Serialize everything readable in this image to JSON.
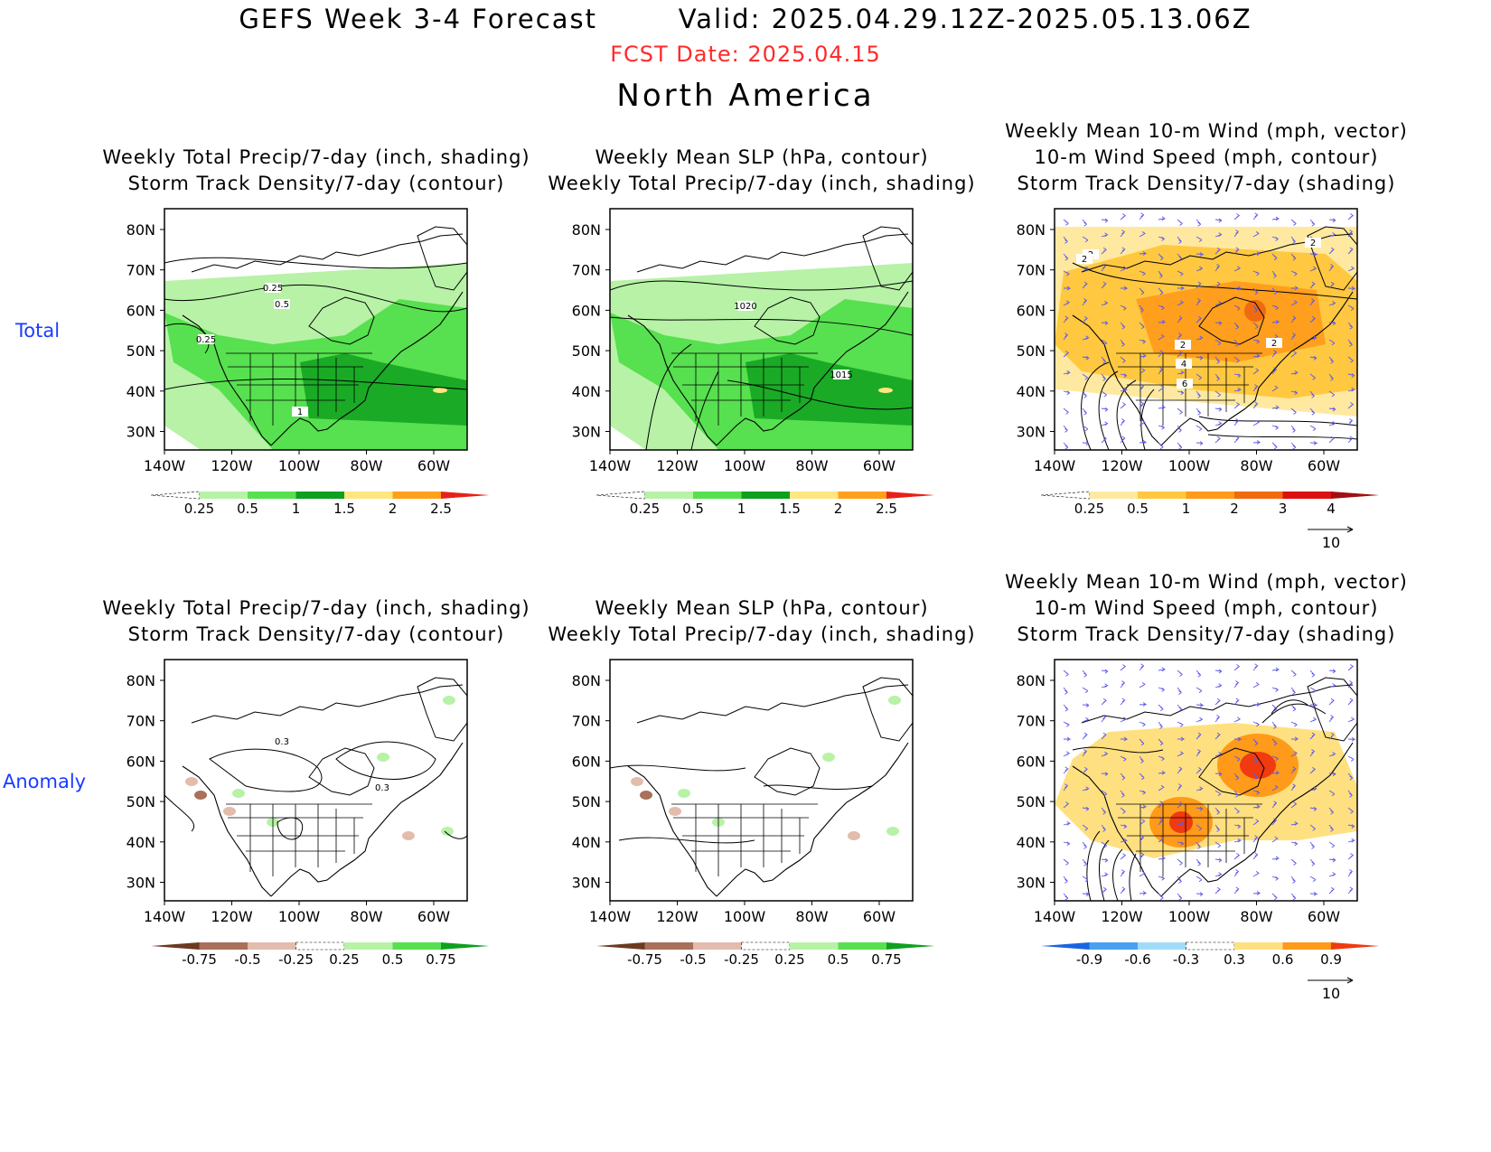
{
  "header": {
    "title": "GEFS Week 3-4 Forecast        Valid: 2025.04.29.12Z-2025.05.13.06Z",
    "fcst_date": "FCST Date: 2025.04.15",
    "region": "North America"
  },
  "rows": [
    "Total",
    "Anomaly"
  ],
  "axes": {
    "lat_ticks": [
      "80N",
      "70N",
      "60N",
      "50N",
      "40N",
      "30N"
    ],
    "lon_ticks": [
      "140W",
      "120W",
      "100W",
      "80W",
      "60W"
    ]
  },
  "panels": [
    {
      "id": "total-precip-storm",
      "title": [
        "Weekly Total Precip/7-day (inch, shading)",
        "Storm Track Density/7-day (contour)"
      ],
      "colorbar": [
        "0.25",
        "0.5",
        "1",
        "1.5",
        "2",
        "2.5"
      ],
      "contour_labels": [
        "0.25",
        "0.5",
        "0.25",
        "1"
      ]
    },
    {
      "id": "total-slp-precip",
      "title": [
        "Weekly Mean SLP (hPa, contour)",
        "Weekly Total Precip/7-day (inch, shading)"
      ],
      "colorbar": [
        "0.25",
        "0.5",
        "1",
        "1.5",
        "2",
        "2.5"
      ],
      "contour_labels": [
        "1020",
        "1015"
      ]
    },
    {
      "id": "total-wind-storm",
      "title": [
        "Weekly Mean 10-m Wind (mph, vector)",
        "10-m Wind Speed (mph, contour)",
        "Storm Track Density/7-day (shading)"
      ],
      "colorbar": [
        "0.25",
        "0.5",
        "1",
        "2",
        "3",
        "4"
      ],
      "vector_ref": "10",
      "contour_labels": [
        "2",
        "2",
        "2",
        "2",
        "2",
        "4",
        "6"
      ]
    },
    {
      "id": "anom-precip-storm",
      "title": [
        "Weekly Total Precip/7-day (inch, shading)",
        "Storm Track Density/7-day (contour)"
      ],
      "colorbar": [
        "-0.75",
        "-0.5",
        "-0.25",
        "0.25",
        "0.5",
        "0.75"
      ],
      "contour_labels": [
        "0.3",
        "0.3"
      ]
    },
    {
      "id": "anom-slp-precip",
      "title": [
        "Weekly Mean SLP (hPa, contour)",
        "Weekly Total Precip/7-day (inch, shading)"
      ],
      "colorbar": [
        "-0.75",
        "-0.5",
        "-0.25",
        "0.25",
        "0.5",
        "0.75"
      ],
      "contour_labels": []
    },
    {
      "id": "anom-wind-storm",
      "title": [
        "Weekly Mean 10-m Wind (mph, vector)",
        "10-m Wind Speed (mph, contour)",
        "Storm Track Density/7-day (shading)"
      ],
      "colorbar": [
        "-0.9",
        "-0.6",
        "-0.3",
        "0.3",
        "0.6",
        "0.9"
      ],
      "vector_ref": "10",
      "contour_labels": []
    }
  ],
  "colors": {
    "precip": [
      "#ffffff",
      "#b7f2a7",
      "#57e04f",
      "#0fa01f",
      "#ffe680",
      "#ffa01a",
      "#e8201a"
    ],
    "precip_anom": [
      "#6b3a22",
      "#a9705a",
      "#e2bcac",
      "#ffffff",
      "#b7f2a7",
      "#57e04f",
      "#0fa01f"
    ],
    "storm": [
      "#ffffff",
      "#ffe9a0",
      "#ffc840",
      "#ff9a1a",
      "#f06a10",
      "#dd1010",
      "#a01010"
    ],
    "storm_anom": [
      "#1a64e0",
      "#4aa0f0",
      "#a0dcf8",
      "#ffffff",
      "#ffe080",
      "#ff9a1a",
      "#f03a10"
    ],
    "wind_vector": "#5a5aee",
    "title_red": "#ff2a2a",
    "row_label_blue": "#1a3cff"
  }
}
